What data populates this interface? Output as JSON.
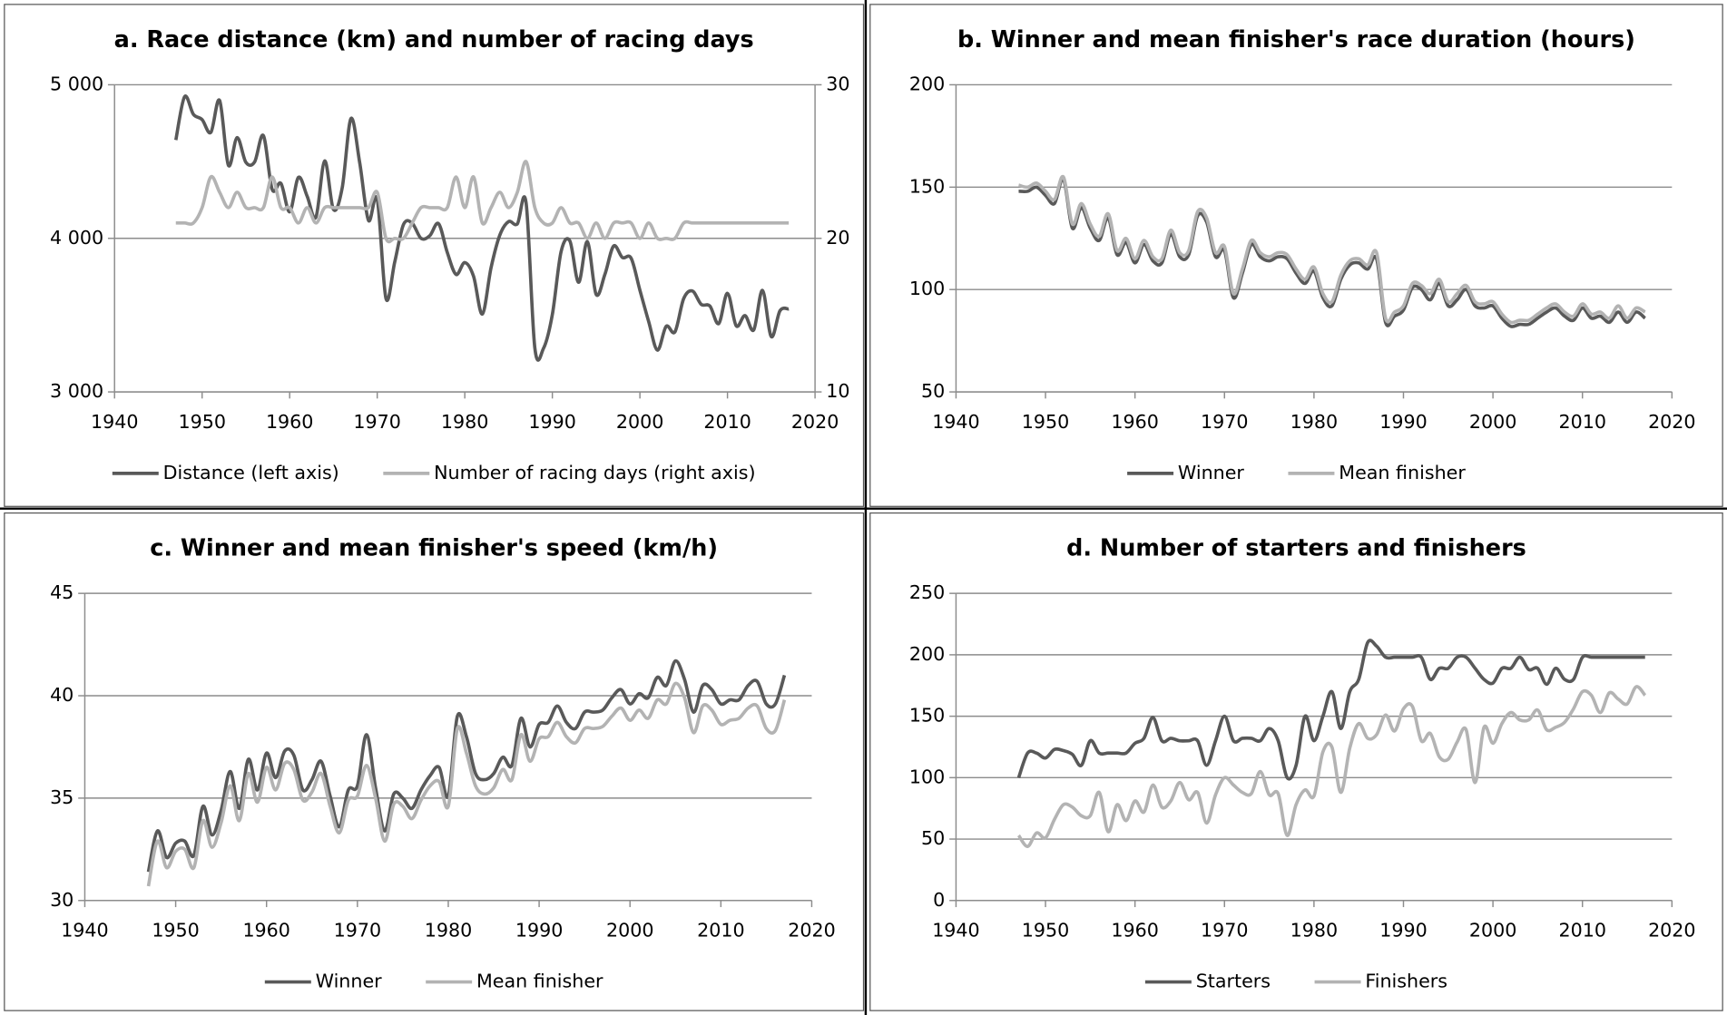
{
  "chart_data": [
    {
      "type": "line",
      "title": "a. Race distance (km) and number of racing days",
      "legend": "bottom",
      "grid": true,
      "x": [
        1947,
        1948,
        1949,
        1950,
        1951,
        1952,
        1953,
        1954,
        1955,
        1956,
        1957,
        1958,
        1959,
        1960,
        1961,
        1962,
        1963,
        1964,
        1965,
        1966,
        1967,
        1968,
        1969,
        1970,
        1971,
        1972,
        1973,
        1974,
        1975,
        1976,
        1977,
        1978,
        1979,
        1980,
        1981,
        1982,
        1983,
        1984,
        1985,
        1986,
        1987,
        1988,
        1989,
        1990,
        1991,
        1992,
        1993,
        1994,
        1995,
        1996,
        1997,
        1998,
        1999,
        2000,
        2001,
        2002,
        2003,
        2004,
        2005,
        2006,
        2007,
        2008,
        2009,
        2010,
        2011,
        2012,
        2013,
        2014,
        2015,
        2016,
        2017
      ],
      "xlim": [
        1940,
        2020
      ],
      "xticks": [
        1940,
        1950,
        1960,
        1970,
        1980,
        1990,
        2000,
        2010,
        2020
      ],
      "ylim": [
        3000,
        5000
      ],
      "yticks": [
        {
          "value": 3000,
          "label": "3 000"
        },
        {
          "value": 4000,
          "label": "4 000"
        },
        {
          "value": 5000,
          "label": "5 000"
        }
      ],
      "y2lim": [
        10,
        30
      ],
      "y2ticks": [
        10,
        20,
        30
      ],
      "series": [
        {
          "name": "Distance (left axis)",
          "color": "#595959",
          "values": [
            4640,
            4922,
            4808,
            4773,
            4690,
            4898,
            4476,
            4656,
            4495,
            4498,
            4669,
            4319,
            4358,
            4173,
            4397,
            4274,
            4138,
            4504,
            4188,
            4329,
            4780,
            4492,
            4117,
            4254,
            3608,
            3846,
            4090,
            4098,
            4000,
            4017,
            4096,
            3908,
            3765,
            3842,
            3753,
            3507,
            3809,
            4021,
            4109,
            4094,
            4231,
            3286,
            3285,
            3504,
            3914,
            3983,
            3714,
            3978,
            3635,
            3765,
            3950,
            3875,
            3870,
            3662,
            3458,
            3272,
            3427,
            3391,
            3608,
            3657,
            3570,
            3559,
            3445,
            3642,
            3430,
            3497,
            3404,
            3661,
            3360,
            3529,
            3540
          ]
        },
        {
          "name": "Number of racing days (right axis)",
          "color": "#b3b3b3",
          "axis": "y2",
          "values": [
            21,
            21,
            21,
            22,
            24,
            23,
            22,
            23,
            22,
            22,
            22,
            24,
            22,
            22,
            21,
            22,
            21,
            22,
            22,
            22,
            22,
            22,
            22,
            23,
            20,
            20,
            20,
            21,
            22,
            22,
            22,
            22,
            24,
            22,
            24,
            21,
            22,
            23,
            22,
            23,
            25,
            22,
            21,
            21,
            22,
            21,
            21,
            20,
            21,
            20,
            21,
            21,
            21,
            20,
            21,
            20,
            20,
            20,
            21,
            21,
            21,
            21,
            21,
            21,
            21,
            21,
            21,
            21,
            21,
            21,
            21
          ]
        }
      ]
    },
    {
      "type": "line",
      "title": "b. Winner and mean finisher's race duration (hours)",
      "legend": "bottom",
      "grid": true,
      "x": [
        1947,
        1948,
        1949,
        1950,
        1951,
        1952,
        1953,
        1954,
        1955,
        1956,
        1957,
        1958,
        1959,
        1960,
        1961,
        1962,
        1963,
        1964,
        1965,
        1966,
        1967,
        1968,
        1969,
        1970,
        1971,
        1972,
        1973,
        1974,
        1975,
        1976,
        1977,
        1978,
        1979,
        1980,
        1981,
        1982,
        1983,
        1984,
        1985,
        1986,
        1987,
        1988,
        1989,
        1990,
        1991,
        1992,
        1993,
        1994,
        1995,
        1996,
        1997,
        1998,
        1999,
        2000,
        2001,
        2002,
        2003,
        2004,
        2005,
        2006,
        2007,
        2008,
        2009,
        2010,
        2011,
        2012,
        2013,
        2014,
        2015,
        2016,
        2017
      ],
      "xlim": [
        1940,
        2020
      ],
      "xticks": [
        1940,
        1950,
        1960,
        1970,
        1980,
        1990,
        2000,
        2010,
        2020
      ],
      "ylim": [
        50,
        200
      ],
      "yticks": [
        50,
        100,
        150,
        200
      ],
      "series": [
        {
          "name": "Winner",
          "color": "#595959",
          "values": [
            148,
            148,
            150,
            146,
            142,
            154,
            130,
            140,
            130,
            124,
            135,
            117,
            123,
            113,
            122,
            114,
            113,
            127,
            116,
            117,
            136,
            133,
            116,
            119,
            96,
            108,
            122,
            116,
            114,
            116,
            115,
            108,
            103,
            109,
            96,
            92,
            105,
            112,
            113,
            110,
            115,
            84,
            87,
            90,
            101,
            100,
            95,
            103,
            92,
            95,
            100,
            92,
            91,
            92,
            86,
            82,
            83,
            83,
            86,
            89,
            91,
            87,
            85,
            91,
            86,
            87,
            84,
            89,
            84,
            89,
            86
          ]
        },
        {
          "name": "Mean finisher",
          "color": "#b3b3b3",
          "values": [
            151,
            150,
            152,
            148,
            144,
            155,
            132,
            142,
            132,
            126,
            137,
            119,
            125,
            115,
            124,
            116,
            115,
            129,
            118,
            119,
            138,
            135,
            118,
            121,
            98,
            110,
            124,
            118,
            116,
            118,
            117,
            110,
            105,
            111,
            98,
            94,
            107,
            114,
            115,
            112,
            118,
            86,
            89,
            92,
            103,
            102,
            98,
            105,
            94,
            98,
            102,
            94,
            93,
            94,
            88,
            84,
            85,
            85,
            88,
            91,
            93,
            89,
            87,
            93,
            88,
            89,
            86,
            92,
            86,
            91,
            89
          ]
        }
      ]
    },
    {
      "type": "line",
      "title": "c. Winner and mean finisher's speed (km/h)",
      "legend": "bottom",
      "grid": true,
      "x": [
        1947,
        1948,
        1949,
        1950,
        1951,
        1952,
        1953,
        1954,
        1955,
        1956,
        1957,
        1958,
        1959,
        1960,
        1961,
        1962,
        1963,
        1964,
        1965,
        1966,
        1967,
        1968,
        1969,
        1970,
        1971,
        1972,
        1973,
        1974,
        1975,
        1976,
        1977,
        1978,
        1979,
        1980,
        1981,
        1982,
        1983,
        1984,
        1985,
        1986,
        1987,
        1988,
        1989,
        1990,
        1991,
        1992,
        1993,
        1994,
        1995,
        1996,
        1997,
        1998,
        1999,
        2000,
        2001,
        2002,
        2003,
        2004,
        2005,
        2006,
        2007,
        2008,
        2009,
        2010,
        2011,
        2012,
        2013,
        2014,
        2015,
        2016,
        2017
      ],
      "xlim": [
        1940,
        2020
      ],
      "xticks": [
        1940,
        1950,
        1960,
        1970,
        1980,
        1990,
        2000,
        2010,
        2020
      ],
      "ylim": [
        30,
        45
      ],
      "yticks": [
        30,
        35,
        40,
        45
      ],
      "series": [
        {
          "name": "Winner",
          "color": "#595959",
          "values": [
            31.4,
            33.4,
            32.1,
            32.8,
            32.9,
            32.2,
            34.6,
            33.2,
            34.4,
            36.3,
            34.5,
            36.9,
            35.4,
            37.2,
            36.0,
            37.3,
            37.1,
            35.4,
            35.9,
            36.8,
            35.1,
            33.6,
            35.4,
            35.6,
            38.1,
            35.5,
            33.4,
            35.2,
            35.0,
            34.5,
            35.4,
            36.1,
            36.5,
            35.1,
            39.0,
            38.0,
            36.2,
            35.9,
            36.2,
            37.0,
            36.6,
            38.9,
            37.5,
            38.6,
            38.7,
            39.5,
            38.7,
            38.4,
            39.2,
            39.2,
            39.3,
            39.9,
            40.3,
            39.6,
            40.1,
            39.9,
            40.9,
            40.5,
            41.7,
            40.8,
            39.2,
            40.5,
            40.3,
            39.6,
            39.8,
            39.8,
            40.5,
            40.7,
            39.6,
            39.6,
            41.0
          ]
        },
        {
          "name": "Mean finisher",
          "color": "#b3b3b3",
          "values": [
            30.7,
            32.9,
            31.6,
            32.4,
            32.5,
            31.6,
            33.9,
            32.6,
            33.8,
            35.6,
            33.9,
            36.2,
            34.8,
            36.5,
            35.4,
            36.7,
            36.4,
            34.9,
            35.3,
            36.2,
            34.6,
            33.3,
            34.9,
            35.1,
            36.6,
            35.0,
            32.9,
            34.7,
            34.6,
            34.0,
            34.9,
            35.6,
            35.8,
            34.6,
            38.4,
            37.2,
            35.6,
            35.2,
            35.5,
            36.4,
            35.9,
            38.1,
            36.8,
            37.9,
            38.0,
            38.7,
            38.0,
            37.7,
            38.4,
            38.4,
            38.5,
            39.0,
            39.4,
            38.8,
            39.3,
            38.9,
            39.8,
            39.6,
            40.6,
            39.9,
            38.2,
            39.5,
            39.3,
            38.6,
            38.8,
            38.9,
            39.4,
            39.5,
            38.4,
            38.3,
            39.8
          ]
        }
      ]
    },
    {
      "type": "line",
      "title": "d. Number of starters and finishers",
      "legend": "bottom",
      "grid": true,
      "x": [
        1947,
        1948,
        1949,
        1950,
        1951,
        1952,
        1953,
        1954,
        1955,
        1956,
        1957,
        1958,
        1959,
        1960,
        1961,
        1962,
        1963,
        1964,
        1965,
        1966,
        1967,
        1968,
        1969,
        1970,
        1971,
        1972,
        1973,
        1974,
        1975,
        1976,
        1977,
        1978,
        1979,
        1980,
        1981,
        1982,
        1983,
        1984,
        1985,
        1986,
        1987,
        1988,
        1989,
        1990,
        1991,
        1992,
        1993,
        1994,
        1995,
        1996,
        1997,
        1998,
        1999,
        2000,
        2001,
        2002,
        2003,
        2004,
        2005,
        2006,
        2007,
        2008,
        2009,
        2010,
        2011,
        2012,
        2013,
        2014,
        2015,
        2016,
        2017
      ],
      "xlim": [
        1940,
        2020
      ],
      "xticks": [
        1940,
        1950,
        1960,
        1970,
        1980,
        1990,
        2000,
        2010,
        2020
      ],
      "ylim": [
        0,
        250
      ],
      "yticks": [
        0,
        50,
        100,
        150,
        200,
        250
      ],
      "series": [
        {
          "name": "Starters",
          "color": "#595959",
          "values": [
            100,
            120,
            120,
            116,
            123,
            122,
            119,
            110,
            130,
            120,
            120,
            120,
            120,
            128,
            132,
            149,
            130,
            132,
            130,
            130,
            130,
            110,
            130,
            150,
            130,
            132,
            132,
            130,
            140,
            130,
            100,
            110,
            150,
            130,
            150,
            170,
            140,
            170,
            180,
            210,
            207,
            198,
            198,
            198,
            198,
            198,
            180,
            189,
            189,
            198,
            198,
            189,
            180,
            177,
            189,
            189,
            198,
            188,
            189,
            176,
            189,
            180,
            180,
            198,
            198,
            198,
            198,
            198,
            198,
            198,
            198
          ]
        },
        {
          "name": "Finishers",
          "color": "#b3b3b3",
          "values": [
            53,
            44,
            55,
            51,
            66,
            78,
            76,
            69,
            69,
            88,
            56,
            78,
            65,
            81,
            72,
            94,
            76,
            81,
            96,
            82,
            88,
            63,
            86,
            100,
            94,
            88,
            87,
            105,
            86,
            87,
            53,
            78,
            90,
            85,
            121,
            125,
            88,
            124,
            144,
            132,
            135,
            151,
            138,
            156,
            158,
            130,
            136,
            117,
            115,
            129,
            139,
            96,
            141,
            128,
            144,
            153,
            147,
            147,
            155,
            139,
            141,
            145,
            156,
            170,
            167,
            153,
            169,
            164,
            160,
            174,
            167
          ]
        }
      ]
    }
  ]
}
